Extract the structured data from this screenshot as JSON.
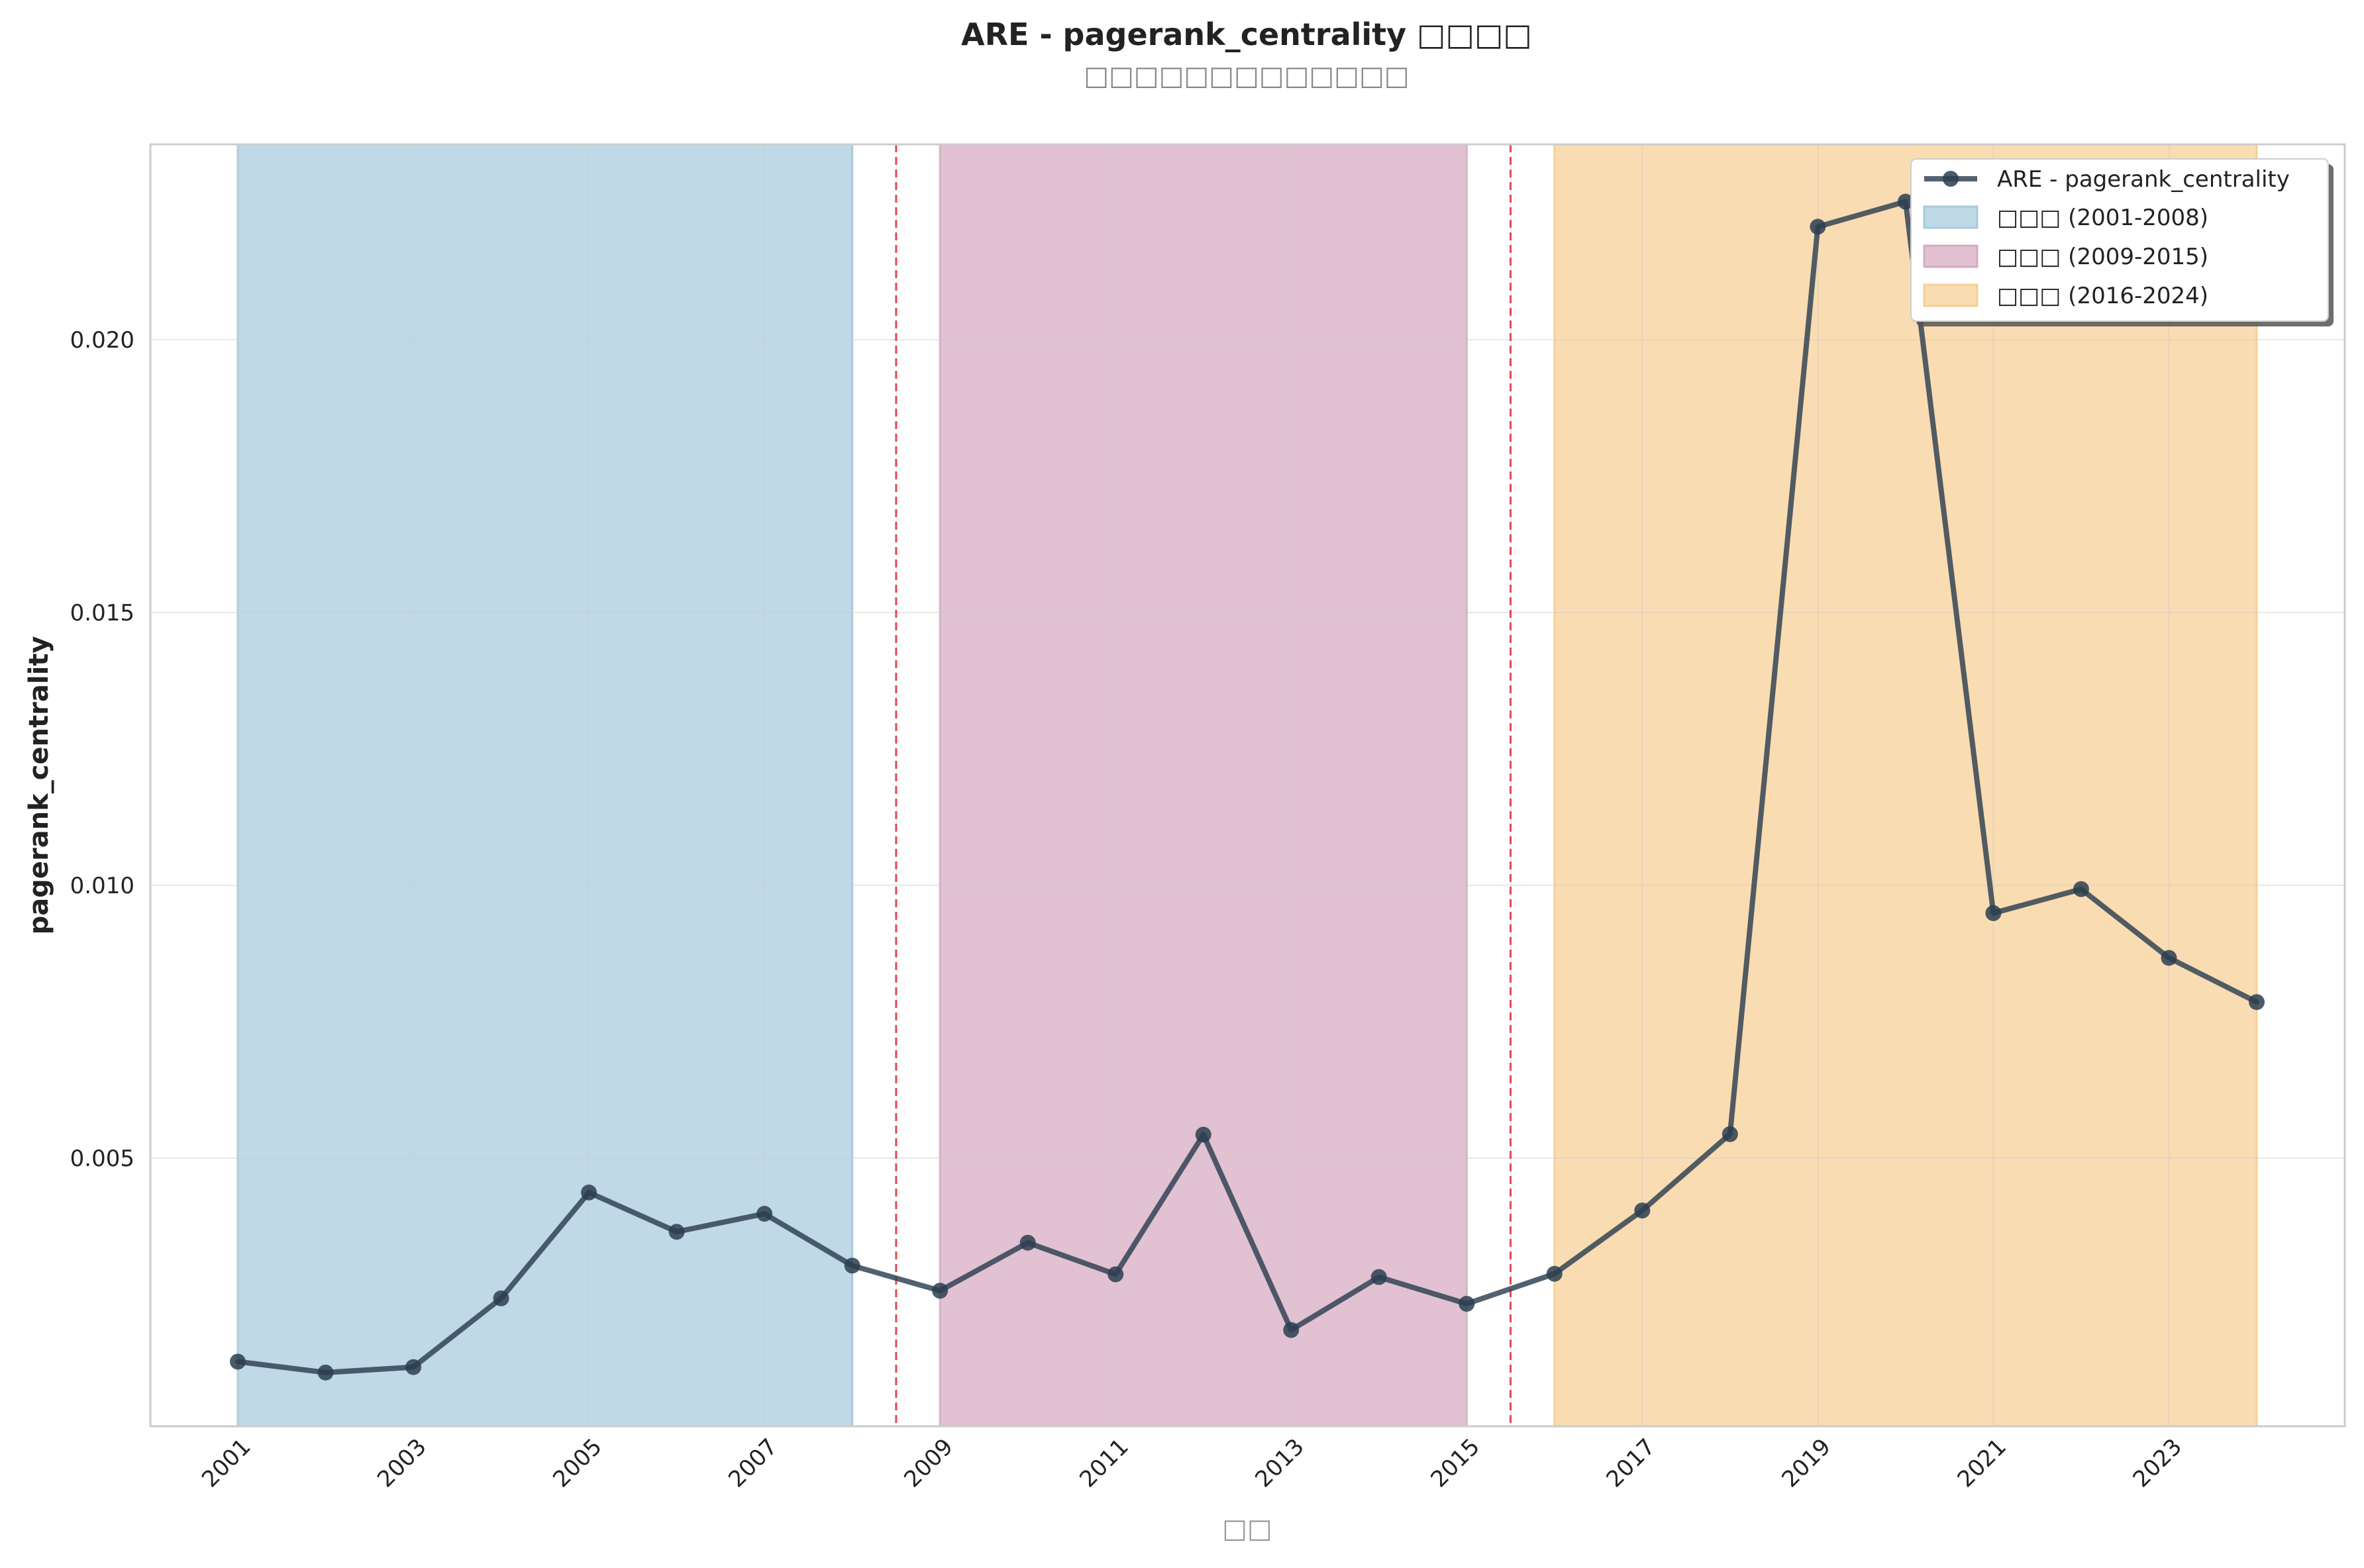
{
  "chart_data": {
    "type": "line",
    "title": "ARE - pagerank_centrality □□□□",
    "subtitle": "□□□□□□□□□□□□□",
    "xlabel": "□□",
    "ylabel": "pagerank_centrality",
    "x": [
      2001,
      2002,
      2003,
      2004,
      2005,
      2006,
      2007,
      2008,
      2009,
      2010,
      2011,
      2012,
      2013,
      2014,
      2015,
      2016,
      2017,
      2018,
      2019,
      2020,
      2021,
      2022,
      2023,
      2024
    ],
    "x_ticks": [
      "2001",
      "2003",
      "2005",
      "2007",
      "2009",
      "2011",
      "2013",
      "2015",
      "2017",
      "2019",
      "2021",
      "2023"
    ],
    "xlim": [
      2000,
      2025
    ],
    "ylim": [
      0.0,
      0.0236
    ],
    "y_ticks": [
      "0.005",
      "0.010",
      "0.015",
      "0.020"
    ],
    "grid": true,
    "legend_position": "top-right",
    "series": [
      {
        "name": "ARE - pagerank_centrality",
        "color": "#2c3e50",
        "values": [
          0.00127,
          0.00107,
          0.00117,
          0.00243,
          0.00437,
          0.00365,
          0.00398,
          0.00303,
          0.00257,
          0.00345,
          0.00287,
          0.00543,
          0.00185,
          0.00282,
          0.00233,
          0.00288,
          0.00404,
          0.00544,
          0.02207,
          0.02253,
          0.00949,
          0.00993,
          0.00867,
          0.00786
        ]
      }
    ],
    "periods": [
      {
        "label": "□□□ (2001-2008)",
        "start": 2001,
        "end": 2008,
        "color": "#a6cbdc"
      },
      {
        "label": "□□□ (2009-2015)",
        "start": 2009,
        "end": 2015,
        "color": "#d5a9c1"
      },
      {
        "label": "□□□ (2016-2024)",
        "start": 2016,
        "end": 2024,
        "color": "#f7cf94"
      }
    ],
    "boundaries": [
      2008.5,
      2015.5
    ],
    "boundary_color": "#e0343c"
  }
}
